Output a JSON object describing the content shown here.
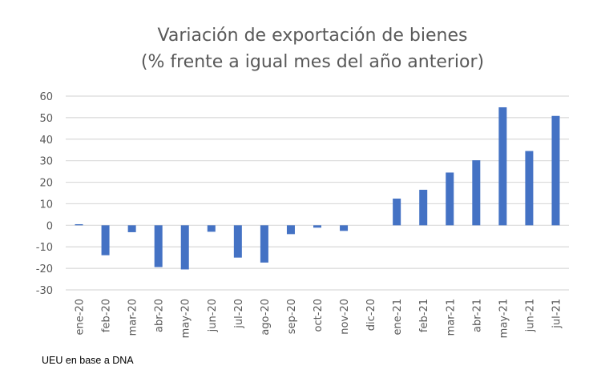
{
  "chart_data": {
    "type": "bar",
    "title": [
      "Variación de exportación de bienes",
      "(% frente a igual mes del año anterior)"
    ],
    "xlabel": "",
    "ylabel": "",
    "ylim": [
      -30,
      60
    ],
    "yticks": [
      60,
      50,
      40,
      30,
      20,
      10,
      0,
      -10,
      -20,
      -30
    ],
    "grid": true,
    "categories": [
      "ene-20",
      "feb-20",
      "mar-20",
      "abr-20",
      "may-20",
      "jun-20",
      "jul-20",
      "ago-20",
      "sep-20",
      "oct-20",
      "nov-20",
      "dic-20",
      "ene-21",
      "feb-21",
      "mar-21",
      "abr-21",
      "may-21",
      "jun-21",
      "jul-21"
    ],
    "values": [
      0.5,
      -13.9,
      -3.2,
      -19.4,
      -20.5,
      -3.0,
      -15.0,
      -17.3,
      -4.1,
      -1.1,
      -2.6,
      0,
      12.4,
      16.5,
      24.5,
      30.2,
      54.8,
      34.5,
      50.8
    ],
    "bar_color": "#4472C4",
    "grid_color": "#D9D9D9",
    "source": "UEU en base a DNA"
  }
}
